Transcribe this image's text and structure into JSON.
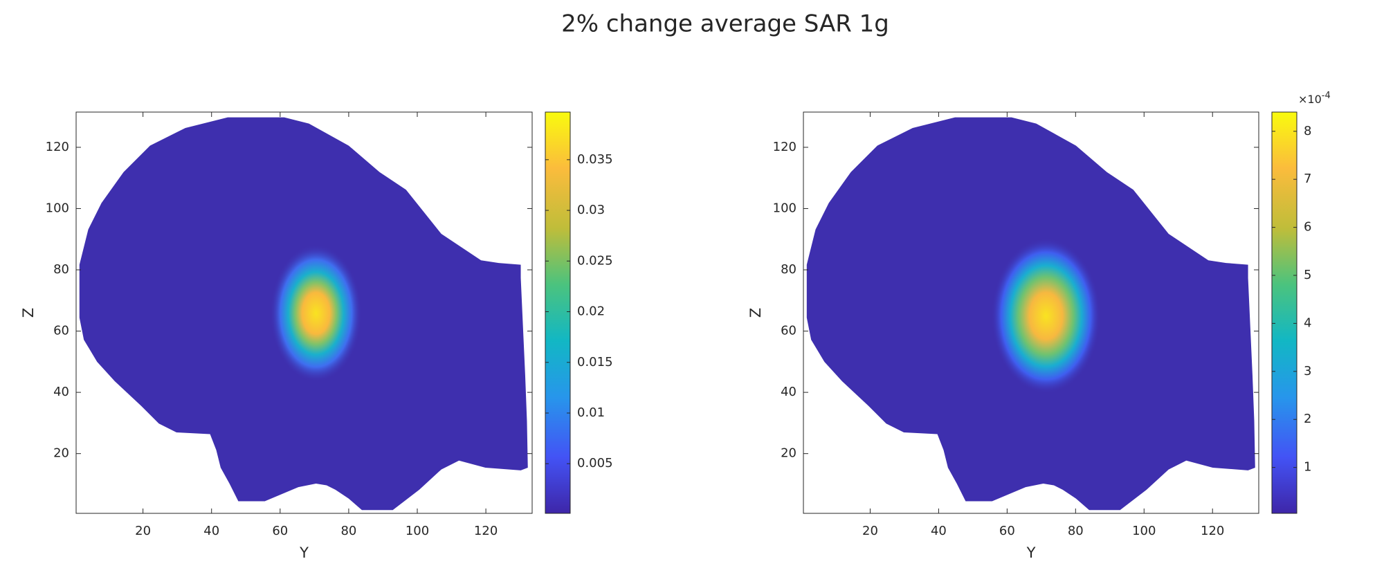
{
  "title": "2% change average SAR 1g",
  "chart_data": [
    {
      "type": "heatmap",
      "xlabel": "Y",
      "ylabel": "Z",
      "colormap": "parula",
      "xlim": [
        0.5,
        133.5
      ],
      "ylim": [
        0.5,
        131.5
      ],
      "xticks": [
        20,
        40,
        60,
        80,
        100,
        120
      ],
      "yticks": [
        20,
        40,
        60,
        80,
        100,
        120
      ],
      "clim": [
        0.0001,
        0.0397
      ],
      "cticks": [
        0.005,
        0.01,
        0.015,
        0.02,
        0.025,
        0.03,
        0.035
      ]
    },
    {
      "type": "heatmap",
      "xlabel": "Y",
      "ylabel": "Z",
      "colormap": "parula",
      "xlim": [
        0.5,
        133.5
      ],
      "ylim": [
        0.5,
        131.5
      ],
      "xticks": [
        20,
        40,
        60,
        80,
        100,
        120
      ],
      "yticks": [
        20,
        40,
        60,
        80,
        100,
        120
      ],
      "clim": [
        4.4e-06,
        0.00084
      ],
      "cticks": [
        {
          "value": 0.0001,
          "label": "1"
        },
        {
          "value": 0.0002,
          "label": "2"
        },
        {
          "value": 0.0003,
          "label": "3"
        },
        {
          "value": 0.0004,
          "label": "4"
        },
        {
          "value": 0.0005,
          "label": "5"
        },
        {
          "value": 0.0006,
          "label": "6"
        },
        {
          "value": 0.0007,
          "label": "7"
        },
        {
          "value": 0.0008,
          "label": "8"
        }
      ],
      "colorbar_multiplier": {
        "base": "×10",
        "exponent": "-4"
      }
    }
  ]
}
